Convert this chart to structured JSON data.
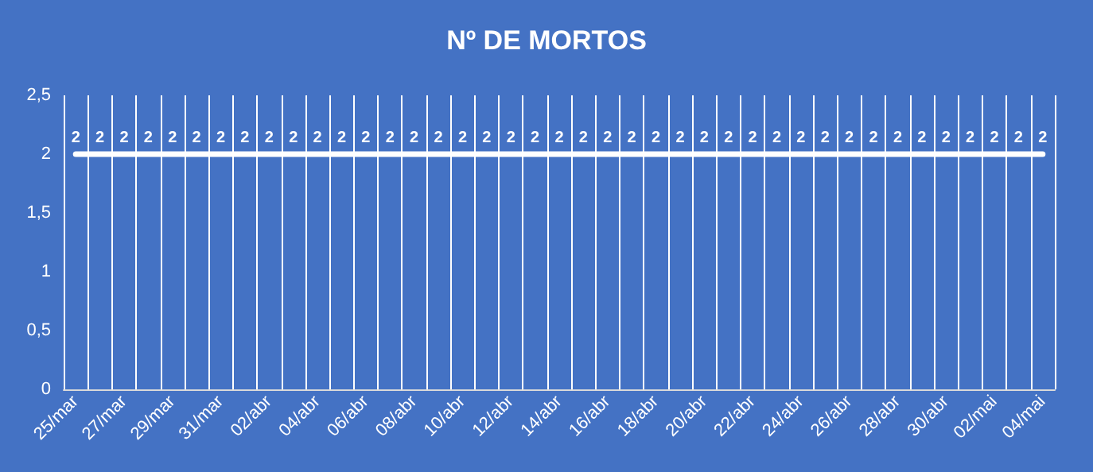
{
  "chart_data": {
    "type": "line",
    "title": "Nº DE MORTOS",
    "categories": [
      "25/mar",
      null,
      "27/mar",
      null,
      "29/mar",
      null,
      "31/mar",
      null,
      "02/abr",
      null,
      "04/abr",
      null,
      "06/abr",
      null,
      "08/abr",
      null,
      "10/abr",
      null,
      "12/abr",
      null,
      "14/abr",
      null,
      "16/abr",
      null,
      "18/abr",
      null,
      "20/abr",
      null,
      "22/abr",
      null,
      "24/abr",
      null,
      "26/abr",
      null,
      "28/abr",
      null,
      "30/abr",
      null,
      "02/mai",
      null,
      "04/mai"
    ],
    "series": [
      {
        "color": "#ffffff",
        "values": [
          2,
          2,
          2,
          2,
          2,
          2,
          2,
          2,
          2,
          2,
          2,
          2,
          2,
          2,
          2,
          2,
          2,
          2,
          2,
          2,
          2,
          2,
          2,
          2,
          2,
          2,
          2,
          2,
          2,
          2,
          2,
          2,
          2,
          2,
          2,
          2,
          2,
          2,
          2,
          2,
          2
        ]
      }
    ],
    "ylim": [
      0,
      2.5
    ],
    "yticks": [
      0,
      {
        "value": 0.5,
        "label": "0,5"
      },
      1,
      {
        "value": 1.5,
        "label": "1,5"
      },
      2,
      {
        "value": 2.5,
        "label": "2,5"
      }
    ],
    "data_labels": true,
    "grid": "x",
    "marker": "none",
    "line_style": "solid"
  }
}
